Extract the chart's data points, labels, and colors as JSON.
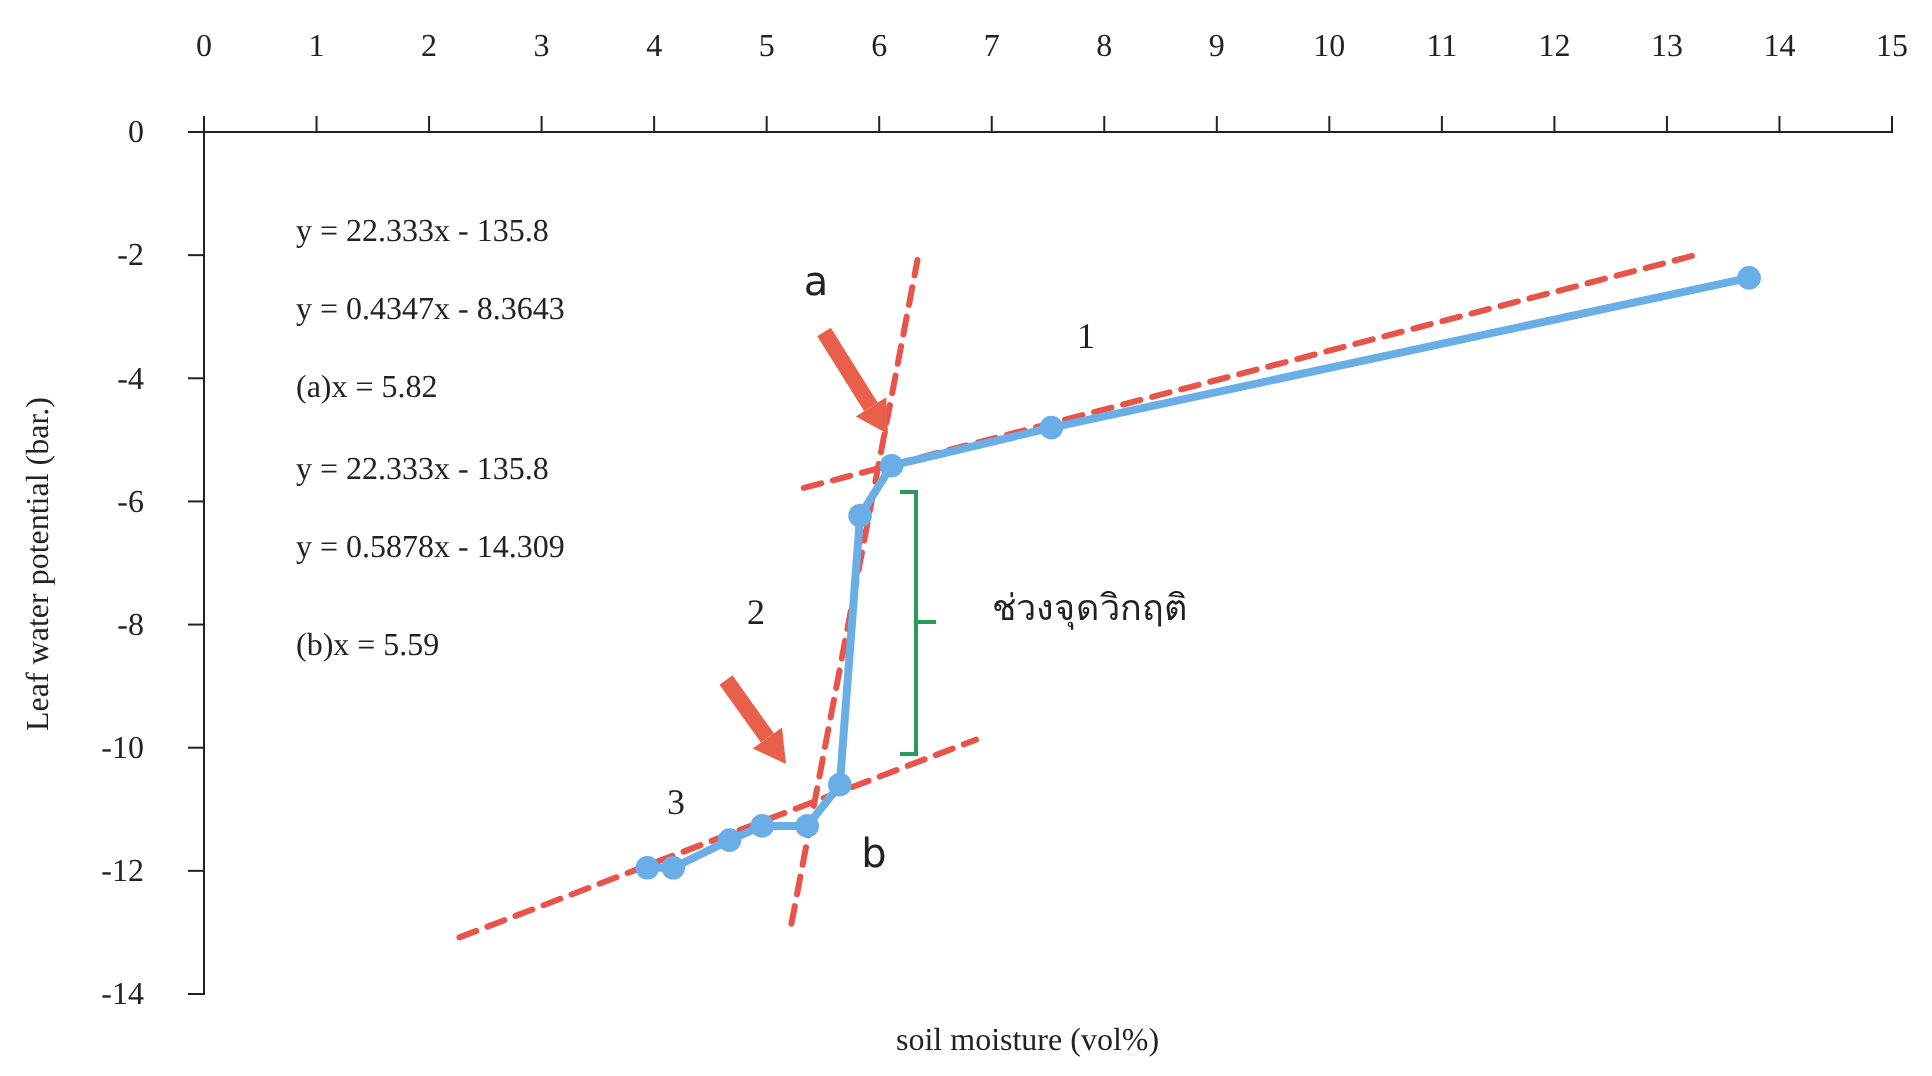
{
  "chart_data": {
    "type": "line",
    "xlabel": "soil moisture (vol%)",
    "ylabel": "Leaf water potential (bar.)",
    "xlim": [
      0,
      15
    ],
    "xticks": [
      0,
      1,
      2,
      3,
      4,
      5,
      6,
      7,
      8,
      9,
      10,
      11,
      12,
      13,
      14,
      15
    ],
    "ylim": [
      -14,
      0
    ],
    "yticks": [
      -14,
      -12,
      -10,
      -8,
      -6,
      -4,
      -2,
      0
    ],
    "grid": false,
    "series": [
      {
        "color": "#e8534a",
        "line_style": "dashed",
        "marker": "none",
        "x": [
          5.33,
          13.23
        ],
        "values": [
          -5.78,
          -2.01
        ]
      },
      {
        "color": "#e8534a",
        "line_style": "dashed",
        "marker": "none",
        "x": [
          5.22,
          6.34
        ],
        "values": [
          -12.86,
          -2.08
        ]
      },
      {
        "color": "#e8534a",
        "line_style": "dashed",
        "marker": "none",
        "x": [
          2.27,
          6.86
        ],
        "values": [
          -13.08,
          -9.87
        ]
      },
      {
        "color": "#6aaee8",
        "line_style": "solid",
        "marker": "circle",
        "x": [
          3.94,
          4.17,
          4.67,
          4.96,
          5.36,
          5.65,
          5.83,
          6.11,
          7.53,
          13.73
        ],
        "values": [
          -11.95,
          -11.95,
          -11.5,
          -11.27,
          -11.27,
          -10.6,
          -6.23,
          -5.42,
          -4.8,
          -2.37
        ]
      }
    ],
    "annotations": [
      "y = 22.333x - 135.8",
      "y = 0.4347x - 8.3643",
      "(a)x = 5.82",
      "y = 22.333x - 135.8",
      "y = 0.5878x - 14.309",
      "(b)x = 5.59",
      "a",
      "b",
      "1",
      "2",
      "3",
      "ช่วงจุดวิกฤติ"
    ]
  }
}
